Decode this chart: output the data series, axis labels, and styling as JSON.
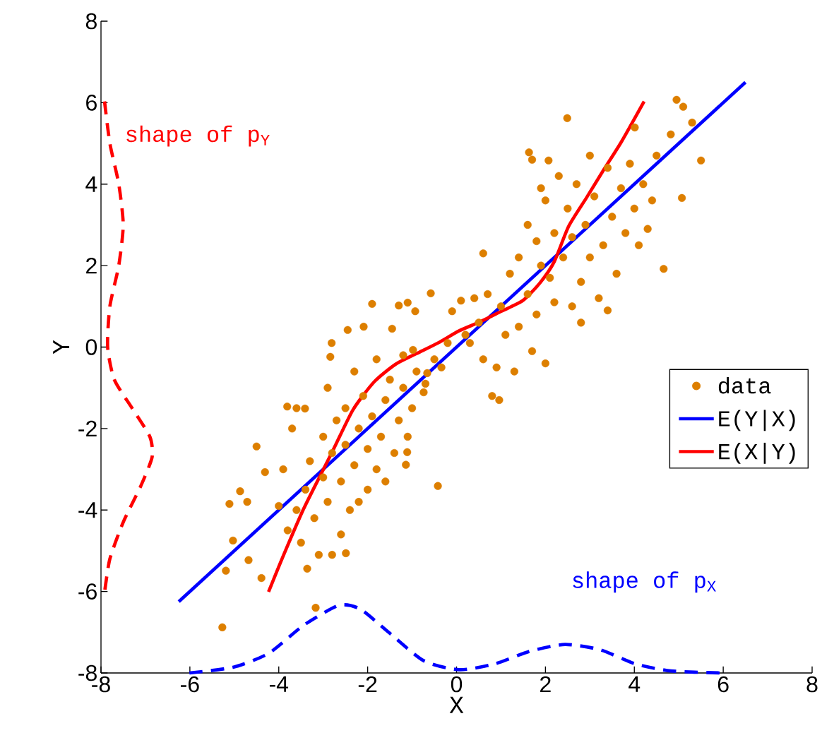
{
  "chart_data": {
    "type": "scatter",
    "xlabel": "X",
    "ylabel": "Y",
    "xlim": [
      -8,
      8
    ],
    "ylim": [
      -8,
      8
    ],
    "xticks": [
      -8,
      -6,
      -4,
      -2,
      0,
      2,
      4,
      6,
      8
    ],
    "yticks": [
      -8,
      -6,
      -4,
      -2,
      0,
      2,
      4,
      6,
      8
    ],
    "grid": false,
    "legend": "right",
    "series": [
      {
        "name": "data",
        "marker": "circle",
        "color": "#dd7f00",
        "x": [
          -5.27,
          -3.17,
          -0.42,
          0.96,
          4.66,
          5.5,
          5.07,
          2.49,
          4.95,
          5.1,
          5.3,
          1.63,
          2.07,
          4.01,
          4.82,
          -5.11,
          -4.87,
          -4.71,
          -5.03,
          -5.19,
          -4.68,
          -4.31,
          -4.5,
          -3.81,
          -3.41,
          -4.39,
          -3.36,
          -2.8,
          -2.49,
          -2.84,
          -2.81,
          -2.45,
          -2.09,
          -1.9,
          -1.45,
          -1.3,
          -1.1,
          -0.93,
          -0.58,
          -0.1,
          0.1,
          -1.14,
          -1.11,
          -0.74,
          -0.66,
          -0.98,
          -0.34,
          -3.8,
          -3.6,
          -3.5,
          -3.4,
          -3.3,
          -3.2,
          -3.0,
          -3.0,
          -2.9,
          -2.8,
          -2.7,
          -2.6,
          -2.5,
          -2.5,
          -2.4,
          -2.3,
          -2.2,
          -2.1,
          -2.0,
          -2.0,
          -1.9,
          -1.8,
          -1.7,
          -1.6,
          -1.5,
          -1.4,
          -1.3,
          -1.2,
          -1.1,
          -1.0,
          -0.9,
          -3.7,
          -3.9,
          -4.0,
          -3.1,
          -2.6,
          -2.2,
          -1.6,
          -3.6,
          -2.9,
          -2.3,
          -1.8,
          -1.2,
          -0.7,
          -0.5,
          -0.2,
          0.2,
          0.5,
          0.6,
          0.7,
          0.9,
          1.0,
          1.1,
          1.2,
          1.3,
          0.6,
          1.4,
          1.6,
          1.7,
          1.8,
          1.9,
          2.0,
          0.8,
          0.3,
          0.4,
          1.6,
          1.8,
          2.0,
          2.1,
          2.2,
          2.3,
          2.4,
          2.5,
          2.6,
          2.6,
          2.7,
          2.8,
          2.9,
          3.0,
          3.0,
          3.1,
          3.2,
          3.3,
          3.4,
          3.5,
          3.6,
          3.7,
          3.8,
          3.9,
          4.0,
          4.2,
          4.3,
          4.4,
          4.5,
          1.4,
          1.9,
          2.2,
          3.4,
          2.8,
          1.7,
          4.1
        ],
        "values": [
          -6.88,
          -6.4,
          -3.41,
          -1.3,
          1.92,
          4.58,
          3.66,
          5.62,
          6.07,
          5.9,
          5.51,
          4.78,
          4.58,
          5.39,
          5.22,
          -3.85,
          -3.54,
          -3.8,
          -4.75,
          -5.49,
          -5.23,
          -3.07,
          -2.44,
          -1.46,
          -1.51,
          -5.67,
          -5.44,
          -5.1,
          -5.06,
          -0.24,
          0.1,
          0.42,
          0.5,
          1.06,
          0.45,
          1.02,
          1.09,
          0.88,
          1.32,
          0.88,
          1.14,
          -2.89,
          -2.58,
          -1.11,
          -0.64,
          -0.07,
          -0.5,
          -4.5,
          -4.0,
          -4.8,
          -3.5,
          -2.8,
          -4.2,
          -3.2,
          -2.2,
          -3.8,
          -2.6,
          -1.8,
          -3.3,
          -2.4,
          -1.5,
          -4.0,
          -2.9,
          -2.0,
          -1.2,
          -3.5,
          -2.5,
          -1.7,
          -3.0,
          -2.2,
          -1.3,
          -0.8,
          -2.6,
          -1.8,
          -1.0,
          -2.2,
          -1.5,
          -0.6,
          -2.0,
          -3.0,
          -3.9,
          -5.1,
          -4.6,
          -3.8,
          -3.3,
          -1.5,
          -1.0,
          -0.6,
          -0.3,
          -0.2,
          -0.9,
          -0.3,
          0.1,
          0.3,
          0.6,
          -0.3,
          1.3,
          -0.5,
          1.0,
          0.3,
          1.8,
          -0.6,
          2.3,
          0.5,
          1.3,
          -0.1,
          0.8,
          2.0,
          -0.4,
          -1.2,
          0.1,
          1.2,
          3.0,
          2.6,
          3.6,
          1.7,
          2.8,
          4.2,
          2.2,
          3.4,
          1.0,
          2.7,
          4.0,
          1.6,
          3.0,
          2.2,
          4.7,
          3.7,
          1.2,
          2.5,
          4.4,
          3.2,
          1.8,
          3.9,
          2.8,
          4.5,
          3.4,
          4.0,
          2.9,
          3.6,
          4.7,
          2.2,
          3.9,
          1.1,
          0.9,
          0.6,
          4.6,
          2.5
        ]
      },
      {
        "name": "E(Y|X)",
        "type": "line",
        "marker": "none",
        "color": "#0000ff",
        "line_style": "solid",
        "x": [
          -6.25,
          6.5
        ],
        "values": [
          -6.25,
          6.5
        ]
      },
      {
        "name": "E(X|Y)",
        "type": "line",
        "marker": "none",
        "color": "#ff0000",
        "line_style": "solid",
        "x": [
          -4.23,
          -3.92,
          -3.44,
          -2.8,
          -2.33,
          -1.85,
          -1.37,
          -0.9,
          -0.42,
          0.06,
          0.53,
          1.01,
          1.49,
          1.88,
          2.2,
          2.52,
          2.92,
          3.31,
          3.71,
          4.22
        ],
        "values": [
          -6.01,
          -5.18,
          -3.97,
          -2.58,
          -1.54,
          -0.85,
          -0.42,
          -0.16,
          0.1,
          0.4,
          0.62,
          0.88,
          1.14,
          1.58,
          2.1,
          2.96,
          3.66,
          4.35,
          5.04,
          6.03
        ]
      },
      {
        "name": "shape of p$_{Y}$",
        "type": "line",
        "marker": "none",
        "color": "#ff0000",
        "line_style": "dashed",
        "x": [
          -7.92,
          -7.8,
          -7.6,
          -7.5,
          -7.6,
          -7.8,
          -7.85,
          -7.7,
          -7.3,
          -6.9,
          -6.85,
          -7.1,
          -7.5,
          -7.8,
          -7.92
        ],
        "values": [
          6.03,
          5.0,
          4.0,
          3.0,
          2.0,
          1.0,
          0,
          -0.8,
          -1.5,
          -2.2,
          -2.7,
          -3.4,
          -4.3,
          -5.2,
          -6.03
        ]
      },
      {
        "name": "shape of p$_{X}$",
        "type": "line",
        "marker": "none",
        "color": "#0000ff",
        "line_style": "dashed",
        "x": [
          -6.01,
          -5.03,
          -4.23,
          -3.44,
          -2.65,
          -2.17,
          -1.53,
          -0.74,
          0.06,
          0.85,
          1.64,
          2.44,
          3.23,
          4.03,
          4.82,
          5.93
        ],
        "values": [
          -8.0,
          -7.86,
          -7.52,
          -6.83,
          -6.34,
          -6.43,
          -7.0,
          -7.7,
          -7.92,
          -7.78,
          -7.47,
          -7.3,
          -7.43,
          -7.78,
          -7.95,
          -8.0
        ]
      }
    ]
  }
}
